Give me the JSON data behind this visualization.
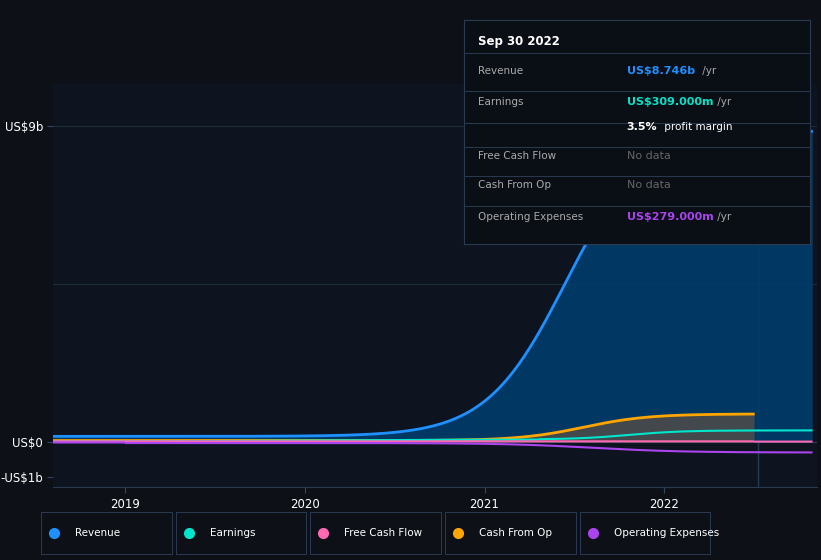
{
  "bg_color": "#0d1117",
  "chart_bg": "#0d1420",
  "grid_color": "#1e2a3a",
  "y_labels": [
    "US$9b",
    "US$0",
    "-US$1b"
  ],
  "y_ticks": [
    9000000000,
    0,
    -1000000000
  ],
  "x_ticks": [
    2019,
    2020,
    2021,
    2022
  ],
  "ylim": [
    -1300000000,
    10200000000
  ],
  "xlim": [
    2018.6,
    2022.85
  ],
  "revenue_color": "#1e90ff",
  "revenue_fill": "#003d6b",
  "earnings_color": "#00e5cc",
  "free_cash_flow_color": "#ff69b4",
  "cash_from_op_color": "#ffa500",
  "cash_from_op_fill": "#4a4a4a",
  "op_exp_color": "#aa44ee",
  "legend_items": [
    {
      "label": "Revenue",
      "color": "#1e90ff"
    },
    {
      "label": "Earnings",
      "color": "#00e5cc"
    },
    {
      "label": "Free Cash Flow",
      "color": "#ff69b4"
    },
    {
      "label": "Cash From Op",
      "color": "#ffa500"
    },
    {
      "label": "Operating Expenses",
      "color": "#aa44ee"
    }
  ],
  "info_box": {
    "date": "Sep 30 2022",
    "rows": [
      {
        "label": "Revenue",
        "value": "US$8.746b",
        "value_color": "#1e90ff",
        "suffix": " /yr"
      },
      {
        "label": "Earnings",
        "value": "US$309.000m",
        "value_color": "#00e5cc",
        "suffix": " /yr"
      },
      {
        "label": "",
        "value": "3.5%",
        "value_color": "#ffffff",
        "suffix": " profit margin"
      },
      {
        "label": "Free Cash Flow",
        "value": "No data",
        "value_color": "#666666",
        "suffix": ""
      },
      {
        "label": "Cash From Op",
        "value": "No data",
        "value_color": "#666666",
        "suffix": ""
      },
      {
        "label": "Operating Expenses",
        "value": "US$279.000m",
        "value_color": "#aa44ee",
        "suffix": " /yr"
      }
    ]
  }
}
